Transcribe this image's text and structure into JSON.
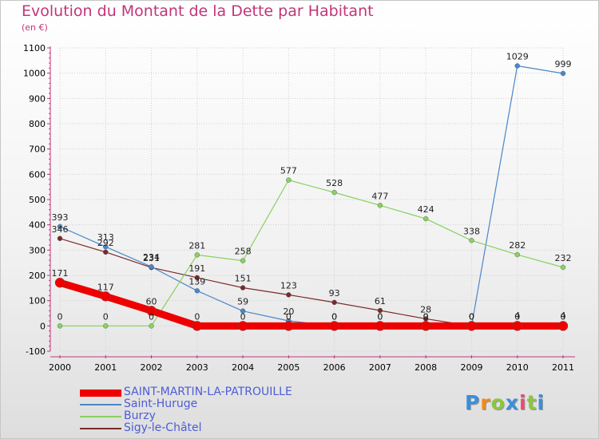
{
  "title": "Evolution du Montant de la Dette par Habitant",
  "unit_label": "(en €)",
  "brand": {
    "letters": [
      "P",
      "r",
      "o",
      "x",
      "i",
      "t",
      "i"
    ],
    "colors": [
      "#3a8fd8",
      "#f08a1c",
      "#8cc63f",
      "#3a8fd8",
      "#e84a7a",
      "#8cc63f",
      "#3a8fd8"
    ]
  },
  "chart_data": {
    "type": "line",
    "x": [
      "2000",
      "2001",
      "2002",
      "2003",
      "2004",
      "2005",
      "2006",
      "2007",
      "2008",
      "2009",
      "2010",
      "2011"
    ],
    "ylim": [
      -100,
      1100
    ],
    "yticks": [
      "-100",
      "0",
      "100",
      "200",
      "300",
      "400",
      "500",
      "600",
      "700",
      "800",
      "900",
      "1000",
      "1100"
    ],
    "grid": true,
    "legend_position": "bottom-left",
    "series": [
      {
        "name": "SAINT-MARTIN-LA-PATROUILLE",
        "color": "#ee0000",
        "values": [
          171,
          117,
          60,
          0,
          0,
          0,
          0,
          0,
          0,
          0,
          0,
          0
        ],
        "labels": [
          "171",
          "117",
          "60",
          "0",
          "0",
          "0",
          "0",
          "0",
          "0",
          "0",
          "0",
          "0"
        ]
      },
      {
        "name": "Saint-Huruge",
        "color": "#4a86c8",
        "values": [
          393,
          313,
          234,
          139,
          59,
          20,
          0,
          0,
          0,
          0,
          1029,
          999
        ],
        "labels": [
          "393",
          "313",
          "234",
          "139",
          "59",
          "20",
          "0",
          "0",
          "0",
          "0",
          "1029",
          "999"
        ]
      },
      {
        "name": "Burzy",
        "color": "#88d160",
        "values": [
          0,
          0,
          0,
          281,
          258,
          577,
          528,
          477,
          424,
          338,
          282,
          232
        ],
        "labels": [
          "0",
          "0",
          "0",
          "281",
          "258",
          "577",
          "528",
          "477",
          "424",
          "338",
          "282",
          "232"
        ]
      },
      {
        "name": "Sigy-le-Châtel",
        "color": "#7a2a2a",
        "values": [
          346,
          292,
          231,
          191,
          151,
          123,
          93,
          61,
          28,
          0,
          4,
          4
        ],
        "labels": [
          "346",
          "292",
          "231",
          "191",
          "151",
          "123",
          "93",
          "61",
          "28",
          "0",
          "4",
          "4"
        ]
      }
    ]
  }
}
